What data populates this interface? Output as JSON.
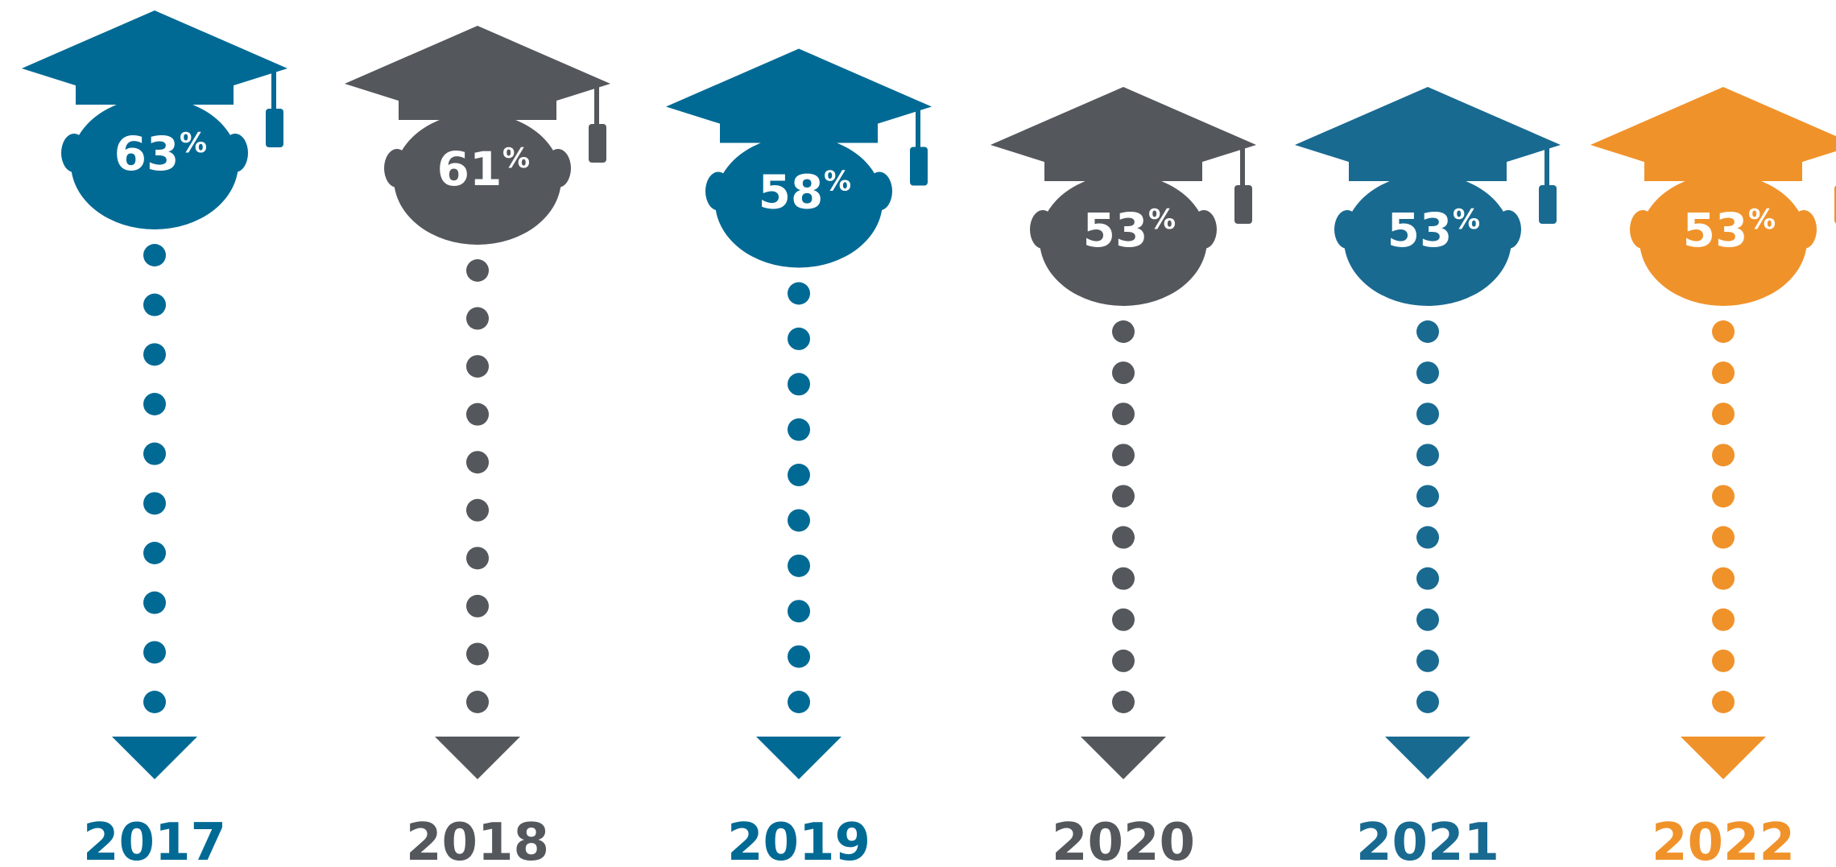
{
  "chart_data": {
    "type": "bar",
    "title": "",
    "xlabel": "",
    "ylabel": "",
    "categories": [
      "2017",
      "2018",
      "2019",
      "2020",
      "2021",
      "2022"
    ],
    "values": [
      63,
      61,
      58,
      53,
      53,
      53
    ],
    "value_labels": [
      "63",
      "61",
      "58",
      "53",
      "53",
      "53"
    ],
    "unit": "%",
    "colors": [
      "#006A94",
      "#54575C",
      "#006A94",
      "#54575C",
      "#196A91",
      "#F0922A"
    ],
    "icon": "graduation-cap-head-icon",
    "marker": "down-arrow-icon",
    "grid": false,
    "legend": "none"
  }
}
